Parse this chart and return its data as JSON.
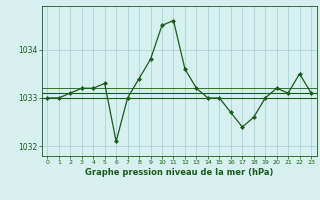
{
  "x": [
    0,
    1,
    2,
    3,
    4,
    5,
    6,
    7,
    8,
    9,
    10,
    11,
    12,
    13,
    14,
    15,
    16,
    17,
    18,
    19,
    20,
    21,
    22,
    23
  ],
  "y": [
    1033.0,
    1033.0,
    1033.1,
    1033.2,
    1033.2,
    1033.3,
    1032.1,
    1033.0,
    1033.4,
    1033.8,
    1034.5,
    1034.6,
    1033.6,
    1033.2,
    1033.0,
    1033.0,
    1032.7,
    1032.4,
    1032.6,
    1033.0,
    1033.2,
    1033.1,
    1033.5,
    1033.1
  ],
  "line_color": "#1a5c1a",
  "marker_color": "#1a5c1a",
  "bg_color": "#d6f0f0",
  "grid_color": "#b0d8d8",
  "title": "Graphe pression niveau de la mer (hPa)",
  "ylim": [
    1031.8,
    1034.9
  ],
  "yticks": [
    1032,
    1033,
    1034
  ],
  "xlim": [
    -0.5,
    23.5
  ],
  "xticks": [
    0,
    1,
    2,
    3,
    4,
    5,
    6,
    7,
    8,
    9,
    10,
    11,
    12,
    13,
    14,
    15,
    16,
    17,
    18,
    19,
    20,
    21,
    22,
    23
  ],
  "mean_line": 1033.1,
  "mean_line2": 1033.15
}
